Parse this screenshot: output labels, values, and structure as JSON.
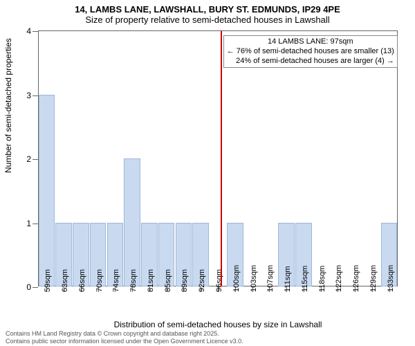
{
  "title": {
    "line1": "14, LAMBS LANE, LAWSHALL, BURY ST. EDMUNDS, IP29 4PE",
    "line2": "Size of property relative to semi-detached houses in Lawshall",
    "fontsize": 13
  },
  "chart": {
    "type": "bar",
    "background_color": "#ffffff",
    "bar_fill": "#c9daf0",
    "bar_stroke": "#9cb6d8",
    "bar_width": 0.95,
    "axis_color": "#666666",
    "categories": [
      "59sqm",
      "63sqm",
      "66sqm",
      "70sqm",
      "74sqm",
      "78sqm",
      "81sqm",
      "85sqm",
      "89sqm",
      "92sqm",
      "96sqm",
      "100sqm",
      "103sqm",
      "107sqm",
      "111sqm",
      "115sqm",
      "118sqm",
      "122sqm",
      "126sqm",
      "129sqm",
      "133sqm"
    ],
    "values": [
      3,
      1,
      1,
      1,
      1,
      2,
      1,
      1,
      1,
      1,
      0,
      1,
      0,
      0,
      1,
      1,
      0,
      0,
      0,
      0,
      1
    ],
    "ylim": [
      0,
      4
    ],
    "yticks": [
      0,
      1,
      2,
      3,
      4
    ],
    "ylabel": "Number of semi-detached properties",
    "xlabel": "Distribution of semi-detached houses by size in Lawshall",
    "tick_fontsize": 12,
    "xtick_fontsize": 11
  },
  "marker": {
    "position_category": "96sqm",
    "color": "#cc0000",
    "annotation_line1": "14 LAMBS LANE: 97sqm",
    "annotation_line2": "← 76% of semi-detached houses are smaller (13)",
    "annotation_line3": "24% of semi-detached houses are larger (4) →",
    "annotation_border": "#888888",
    "annotation_bg": "#ffffff",
    "annotation_fontsize": 11
  },
  "footer": {
    "line1": "Contains HM Land Registry data © Crown copyright and database right 2025.",
    "line2": "Contains public sector information licensed under the Open Government Licence v3.0.",
    "color": "#555555",
    "fontsize": 9
  }
}
